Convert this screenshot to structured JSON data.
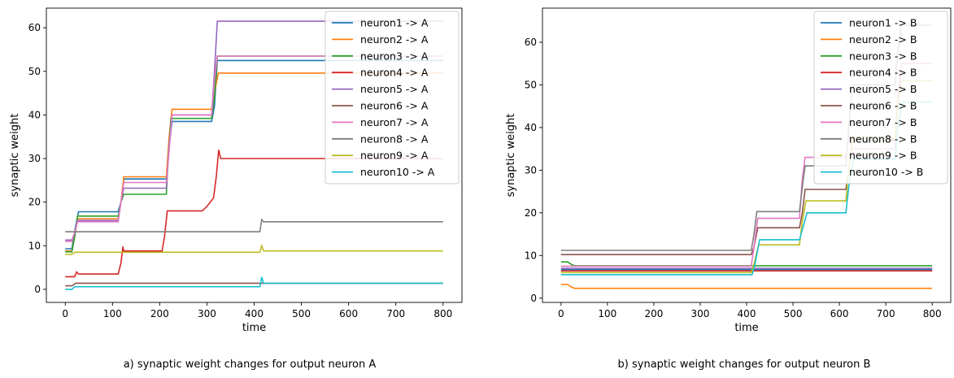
{
  "chart_data": [
    {
      "type": "line",
      "caption": "a) synaptic weight changes for output neuron A",
      "xlabel": "time",
      "ylabel": "synaptic weight",
      "xlim": [
        -40,
        840
      ],
      "ylim": [
        -3,
        64.5
      ],
      "xticks": [
        0,
        100,
        200,
        300,
        400,
        500,
        600,
        700,
        800
      ],
      "yticks": [
        0,
        10,
        20,
        30,
        40,
        50,
        60
      ],
      "legend_position": "upper-right",
      "grid": false,
      "series": [
        {
          "name": "neuron1 -> A",
          "color": "#1f77b4",
          "points": [
            [
              0,
              9.3
            ],
            [
              14,
              9.3
            ],
            [
              18,
              12
            ],
            [
              22,
              14.5
            ],
            [
              28,
              17.8
            ],
            [
              112,
              17.8
            ],
            [
              118,
              20
            ],
            [
              124,
              25.3
            ],
            [
              214,
              25.3
            ],
            [
              220,
              33
            ],
            [
              226,
              38.5
            ],
            [
              310,
              38.5
            ],
            [
              316,
              42
            ],
            [
              322,
              52.5
            ],
            [
              800,
              52.5
            ]
          ]
        },
        {
          "name": "neuron2 -> A",
          "color": "#ff7f0e",
          "points": [
            [
              0,
              8.8
            ],
            [
              14,
              8.8
            ],
            [
              20,
              12
            ],
            [
              26,
              16.2
            ],
            [
              112,
              16.2
            ],
            [
              118,
              20
            ],
            [
              124,
              25.8
            ],
            [
              214,
              25.8
            ],
            [
              220,
              35
            ],
            [
              226,
              41.3
            ],
            [
              310,
              41.3
            ],
            [
              316,
              45
            ],
            [
              324,
              49.6
            ],
            [
              800,
              49.6
            ]
          ]
        },
        {
          "name": "neuron3 -> A",
          "color": "#2ca02c",
          "points": [
            [
              0,
              8.6
            ],
            [
              14,
              8.6
            ],
            [
              20,
              12
            ],
            [
              26,
              16.8
            ],
            [
              112,
              16.8
            ],
            [
              118,
              20
            ],
            [
              124,
              21.8
            ],
            [
              214,
              21.8
            ],
            [
              218,
              30
            ],
            [
              224,
              39.2
            ],
            [
              310,
              39.2
            ],
            [
              316,
              44
            ],
            [
              322,
              53.5
            ],
            [
              800,
              53.5
            ]
          ]
        },
        {
          "name": "neuron4 -> A",
          "color": "#d62728",
          "points": [
            [
              0,
              2.9
            ],
            [
              20,
              2.9
            ],
            [
              24,
              4
            ],
            [
              28,
              3.5
            ],
            [
              112,
              3.5
            ],
            [
              118,
              6
            ],
            [
              122,
              9.8
            ],
            [
              124,
              8.8
            ],
            [
              205,
              8.8
            ],
            [
              210,
              12
            ],
            [
              216,
              18
            ],
            [
              290,
              18
            ],
            [
              300,
              19
            ],
            [
              314,
              21
            ],
            [
              320,
              26
            ],
            [
              325,
              32
            ],
            [
              329,
              30
            ],
            [
              800,
              30
            ]
          ]
        },
        {
          "name": "neuron5 -> A",
          "color": "#9467bd",
          "points": [
            [
              0,
              11.3
            ],
            [
              14,
              11.3
            ],
            [
              20,
              13
            ],
            [
              26,
              15.8
            ],
            [
              112,
              15.8
            ],
            [
              118,
              20
            ],
            [
              124,
              23.2
            ],
            [
              214,
              23.2
            ],
            [
              220,
              33
            ],
            [
              226,
              40
            ],
            [
              310,
              40
            ],
            [
              316,
              50
            ],
            [
              322,
              61.5
            ],
            [
              800,
              61.5
            ]
          ]
        },
        {
          "name": "neuron6 -> A",
          "color": "#8c564b",
          "points": [
            [
              0,
              0.8
            ],
            [
              14,
              0.8
            ],
            [
              22,
              1.4
            ],
            [
              800,
              1.4
            ]
          ]
        },
        {
          "name": "neuron7 -> A",
          "color": "#e377c2",
          "points": [
            [
              0,
              11
            ],
            [
              14,
              11
            ],
            [
              20,
              13
            ],
            [
              26,
              15.5
            ],
            [
              112,
              15.5
            ],
            [
              118,
              20
            ],
            [
              124,
              24.5
            ],
            [
              214,
              24.5
            ],
            [
              220,
              32
            ],
            [
              226,
              40
            ],
            [
              310,
              40
            ],
            [
              316,
              48
            ],
            [
              322,
              53.5
            ],
            [
              800,
              53.5
            ]
          ]
        },
        {
          "name": "neuron8 -> A",
          "color": "#7f7f7f",
          "points": [
            [
              0,
              13.2
            ],
            [
              412,
              13.2
            ],
            [
              416,
              16
            ],
            [
              420,
              15.5
            ],
            [
              800,
              15.5
            ]
          ]
        },
        {
          "name": "neuron9 -> A",
          "color": "#bcbd22",
          "points": [
            [
              0,
              8
            ],
            [
              14,
              8
            ],
            [
              20,
              8.5
            ],
            [
              412,
              8.5
            ],
            [
              416,
              10
            ],
            [
              420,
              8.8
            ],
            [
              800,
              8.8
            ]
          ]
        },
        {
          "name": "neuron10 -> A",
          "color": "#17becf",
          "points": [
            [
              0,
              0
            ],
            [
              14,
              0
            ],
            [
              20,
              0.6
            ],
            [
              412,
              0.6
            ],
            [
              416,
              2.8
            ],
            [
              420,
              1.4
            ],
            [
              800,
              1.4
            ]
          ]
        }
      ]
    },
    {
      "type": "line",
      "caption": "b) synaptic weight changes for output neuron B",
      "xlabel": "time",
      "ylabel": "synaptic weight",
      "xlim": [
        -40,
        840
      ],
      "ylim": [
        -1,
        68
      ],
      "xticks": [
        0,
        100,
        200,
        300,
        400,
        500,
        600,
        700,
        800
      ],
      "yticks": [
        0,
        10,
        20,
        30,
        40,
        50,
        60
      ],
      "legend_position": "upper-right",
      "grid": false,
      "series": [
        {
          "name": "neuron1 -> B",
          "color": "#1f77b4",
          "points": [
            [
              0,
              6.7
            ],
            [
              800,
              6.7
            ]
          ]
        },
        {
          "name": "neuron2 -> B",
          "color": "#ff7f0e",
          "points": [
            [
              0,
              3.2
            ],
            [
              14,
              3.2
            ],
            [
              24,
              2.5
            ],
            [
              30,
              2.3
            ],
            [
              800,
              2.3
            ]
          ]
        },
        {
          "name": "neuron3 -> B",
          "color": "#2ca02c",
          "points": [
            [
              0,
              8.5
            ],
            [
              14,
              8.5
            ],
            [
              24,
              7.8
            ],
            [
              30,
              7.6
            ],
            [
              800,
              7.6
            ]
          ]
        },
        {
          "name": "neuron4 -> B",
          "color": "#d62728",
          "points": [
            [
              0,
              6.4
            ],
            [
              800,
              6.4
            ]
          ]
        },
        {
          "name": "neuron5 -> B",
          "color": "#9467bd",
          "points": [
            [
              0,
              7
            ],
            [
              800,
              7
            ]
          ]
        },
        {
          "name": "neuron6 -> B",
          "color": "#8c564b",
          "points": [
            [
              0,
              10.2
            ],
            [
              410,
              10.2
            ],
            [
              416,
              12
            ],
            [
              424,
              16.5
            ],
            [
              514,
              16.5
            ],
            [
              520,
              20
            ],
            [
              526,
              25.5
            ],
            [
              614,
              25.5
            ],
            [
              620,
              30
            ],
            [
              628,
              37
            ],
            [
              720,
              37
            ],
            [
              726,
              45
            ],
            [
              734,
              55
            ],
            [
              800,
              55
            ]
          ]
        },
        {
          "name": "neuron7 -> B",
          "color": "#e377c2",
          "points": [
            [
              0,
              7.5
            ],
            [
              410,
              7.5
            ],
            [
              416,
              12
            ],
            [
              424,
              18.7
            ],
            [
              514,
              18.7
            ],
            [
              520,
              28
            ],
            [
              526,
              33
            ],
            [
              614,
              33
            ],
            [
              620,
              38
            ],
            [
              628,
              35
            ],
            [
              720,
              35
            ],
            [
              726,
              48
            ],
            [
              734,
              55
            ],
            [
              800,
              55
            ]
          ]
        },
        {
          "name": "neuron8 -> B",
          "color": "#7f7f7f",
          "points": [
            [
              0,
              11.2
            ],
            [
              410,
              11.2
            ],
            [
              416,
              15
            ],
            [
              422,
              20.3
            ],
            [
              514,
              20.3
            ],
            [
              520,
              26
            ],
            [
              526,
              31
            ],
            [
              614,
              31
            ],
            [
              620,
              40
            ],
            [
              628,
              50
            ],
            [
              720,
              50
            ],
            [
              726,
              58
            ],
            [
              734,
              64
            ],
            [
              800,
              64
            ]
          ]
        },
        {
          "name": "neuron9 -> B",
          "color": "#bcbd22",
          "points": [
            [
              0,
              6
            ],
            [
              410,
              6
            ],
            [
              416,
              8
            ],
            [
              426,
              12.5
            ],
            [
              514,
              12.5
            ],
            [
              520,
              18
            ],
            [
              528,
              22.8
            ],
            [
              614,
              22.8
            ],
            [
              620,
              30
            ],
            [
              628,
              37.5
            ],
            [
              720,
              37.5
            ],
            [
              726,
              46
            ],
            [
              734,
              51
            ],
            [
              800,
              51
            ]
          ]
        },
        {
          "name": "neuron10 -> B",
          "color": "#17becf",
          "points": [
            [
              0,
              5.5
            ],
            [
              412,
              5.5
            ],
            [
              418,
              8
            ],
            [
              428,
              13.7
            ],
            [
              514,
              13.7
            ],
            [
              520,
              16
            ],
            [
              530,
              20
            ],
            [
              614,
              20
            ],
            [
              620,
              26
            ],
            [
              630,
              32.5
            ],
            [
              720,
              32.5
            ],
            [
              726,
              40
            ],
            [
              736,
              46
            ],
            [
              800,
              46
            ]
          ]
        }
      ]
    }
  ]
}
